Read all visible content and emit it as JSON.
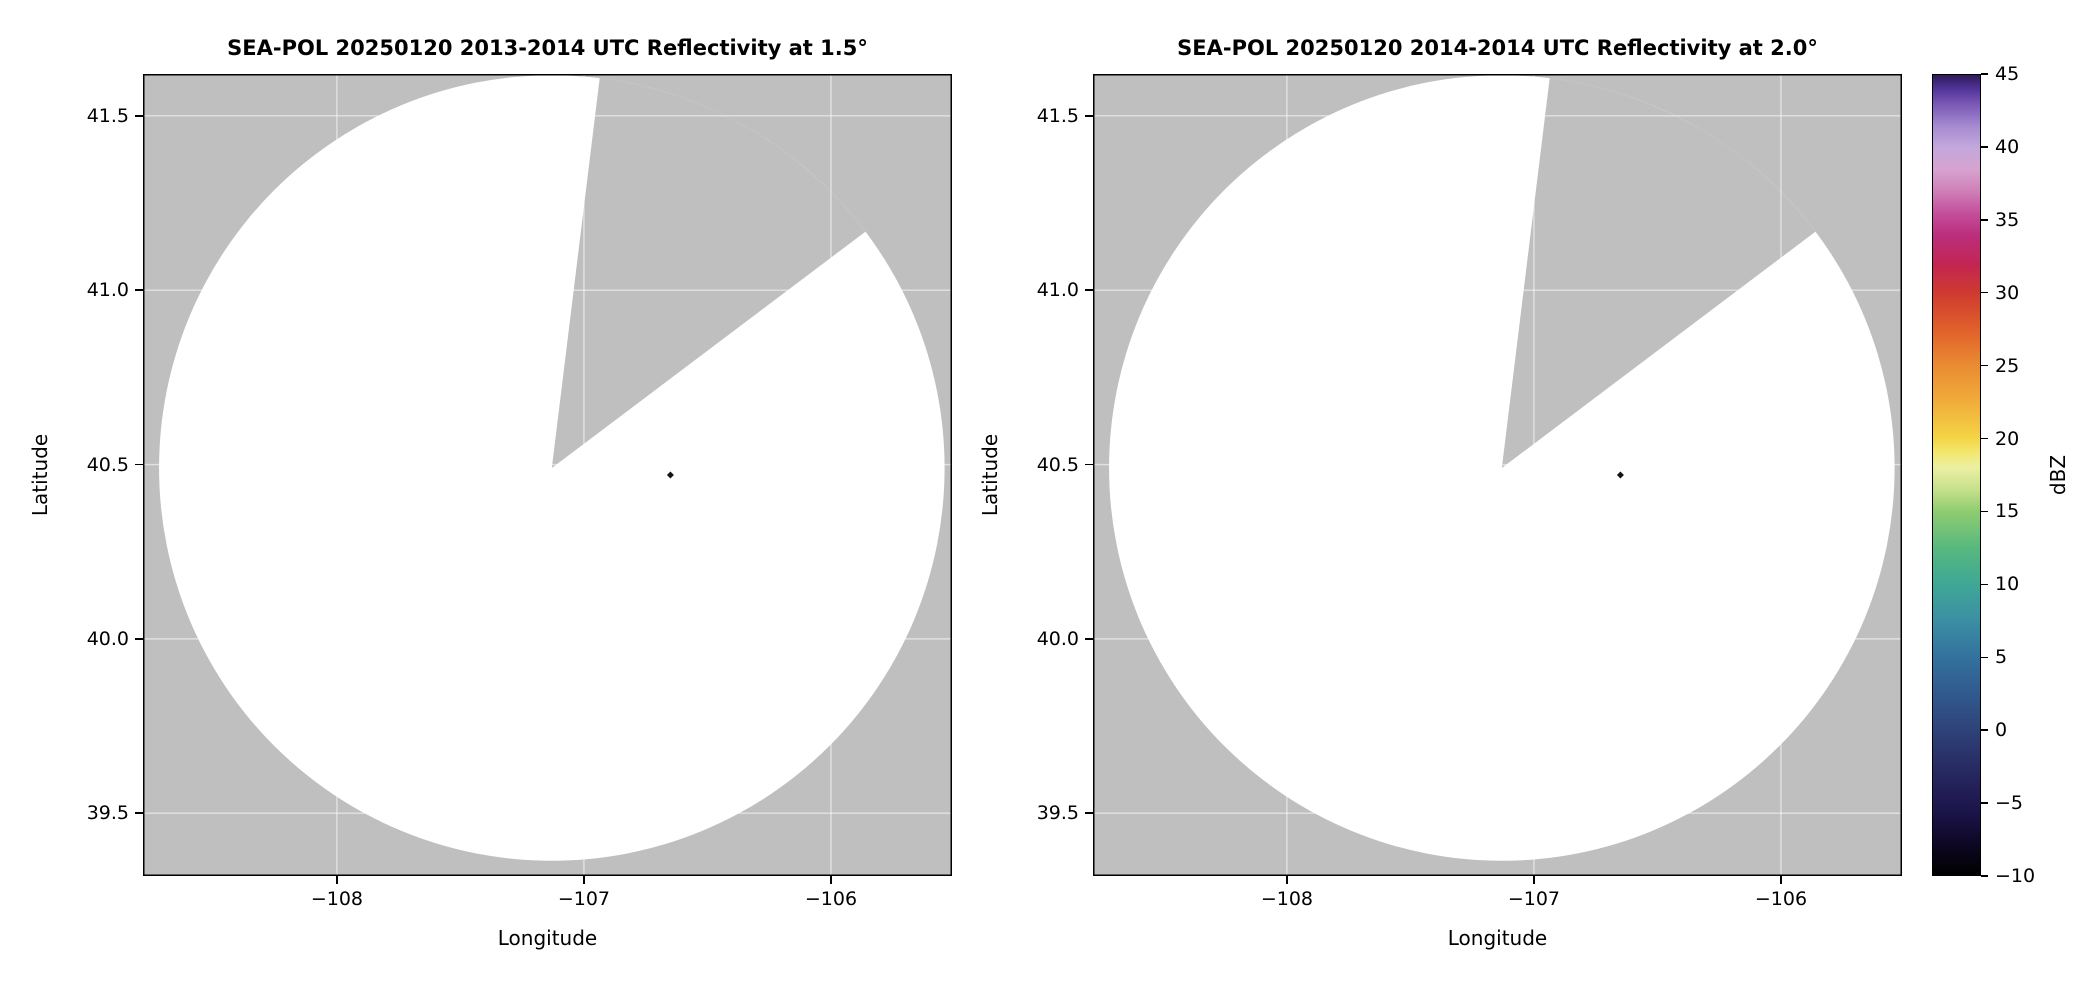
{
  "figure": {
    "background_color": "#ffffff"
  },
  "chart_data": [
    {
      "type": "radar_ppi",
      "title": "SEA-POL 20250120 2013-2014 UTC Reflectivity at 1.5°",
      "xlabel": "Longitude",
      "ylabel": "Latitude",
      "xlim": [
        -108.785,
        -105.51
      ],
      "ylim": [
        39.32,
        41.62
      ],
      "xtick_values": [
        -108,
        -107,
        -106
      ],
      "xtick_labels": [
        "−108",
        "−107",
        "−106"
      ],
      "ytick_values": [
        41.5,
        41.0,
        40.5,
        40.0,
        39.5
      ],
      "ytick_labels": [
        "41.5",
        "41.0",
        "40.5",
        "40.0",
        "39.5"
      ],
      "radar_site": {
        "lon": -107.13,
        "lat": 40.49
      },
      "coverage_radius_lon_deg": 1.59,
      "missing_sector_azimuths_deg": [
        7,
        53
      ],
      "echo_points": [
        {
          "lon": -106.65,
          "lat": 40.47,
          "color": "#141414"
        }
      ],
      "grid": true,
      "colors": {
        "outside": "#bfbfbf",
        "coverage": "#ffffff",
        "grid": "rgba(255,255,255,0.55)",
        "frame": "#000000"
      }
    },
    {
      "type": "radar_ppi",
      "title": "SEA-POL 20250120 2014-2014 UTC Reflectivity at 2.0°",
      "xlabel": "Longitude",
      "ylabel": "Latitude",
      "xlim": [
        -108.785,
        -105.51
      ],
      "ylim": [
        39.32,
        41.62
      ],
      "xtick_values": [
        -108,
        -107,
        -106
      ],
      "xtick_labels": [
        "−108",
        "−107",
        "−106"
      ],
      "ytick_values": [
        41.5,
        41.0,
        40.5,
        40.0,
        39.5
      ],
      "ytick_labels": [
        "41.5",
        "41.0",
        "40.5",
        "40.0",
        "39.5"
      ],
      "radar_site": {
        "lon": -107.13,
        "lat": 40.49
      },
      "coverage_radius_lon_deg": 1.59,
      "missing_sector_azimuths_deg": [
        7,
        53
      ],
      "echo_points": [
        {
          "lon": -106.65,
          "lat": 40.47,
          "color": "#141414"
        }
      ],
      "grid": true,
      "colors": {
        "outside": "#bfbfbf",
        "coverage": "#ffffff",
        "grid": "rgba(255,255,255,0.55)",
        "frame": "#000000"
      }
    }
  ],
  "colorbar": {
    "label": "dBZ",
    "vmin": -10,
    "vmax": 45,
    "tick_values": [
      45,
      40,
      35,
      30,
      25,
      20,
      15,
      10,
      5,
      0,
      -5,
      -10
    ],
    "tick_labels": [
      "45",
      "40",
      "35",
      "30",
      "25",
      "20",
      "15",
      "10",
      "5",
      "0",
      "−5",
      "−10"
    ],
    "gradient_stops": [
      {
        "v": -10,
        "color": "#000000"
      },
      {
        "v": -8,
        "color": "#0d0722"
      },
      {
        "v": -6,
        "color": "#191245"
      },
      {
        "v": -4,
        "color": "#232058"
      },
      {
        "v": -2,
        "color": "#2a3068"
      },
      {
        "v": 0,
        "color": "#2e4379"
      },
      {
        "v": 2.5,
        "color": "#315a8e"
      },
      {
        "v": 5,
        "color": "#33729e"
      },
      {
        "v": 7.5,
        "color": "#3b8fa3"
      },
      {
        "v": 10,
        "color": "#3fa796"
      },
      {
        "v": 12.5,
        "color": "#58b97e"
      },
      {
        "v": 15,
        "color": "#8fcc70"
      },
      {
        "v": 16.5,
        "color": "#c5e18b"
      },
      {
        "v": 18,
        "color": "#ecefa2"
      },
      {
        "v": 19,
        "color": "#f3e871"
      },
      {
        "v": 20,
        "color": "#f4d547"
      },
      {
        "v": 22.5,
        "color": "#f0ad3a"
      },
      {
        "v": 25,
        "color": "#ea8c33"
      },
      {
        "v": 27.5,
        "color": "#e0602b"
      },
      {
        "v": 30,
        "color": "#cf3a30"
      },
      {
        "v": 32,
        "color": "#c22553"
      },
      {
        "v": 34,
        "color": "#bb2f7d"
      },
      {
        "v": 35.5,
        "color": "#c44f9b"
      },
      {
        "v": 37,
        "color": "#cf7fb8"
      },
      {
        "v": 38.5,
        "color": "#d7a3cf"
      },
      {
        "v": 40,
        "color": "#c3a8dd"
      },
      {
        "v": 41.5,
        "color": "#a58ad0"
      },
      {
        "v": 43,
        "color": "#7a58b5"
      },
      {
        "v": 44,
        "color": "#53359b"
      },
      {
        "v": 45,
        "color": "#2e1a57"
      }
    ]
  }
}
